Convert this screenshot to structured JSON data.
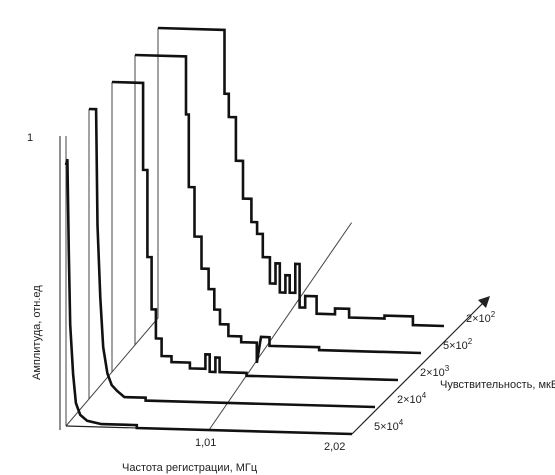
{
  "chart_data": {
    "type": "line",
    "style": "3d waterfall (step lines)",
    "xlabel": "Частота регистрации, МГц",
    "ylabel": "Амплитуда, отн.ед",
    "zlabel": "Чувствительность, мкВ",
    "x_ticks": [
      "1,01",
      "2,02"
    ],
    "y_ticks": [
      "1"
    ],
    "xlim": [
      0,
      2.02
    ],
    "ylim": [
      0,
      1
    ],
    "grid": false,
    "series": [
      {
        "name": "2×10²",
        "name_base": "2×10",
        "name_exp": "2",
        "points": [
          [
            0,
            1.0
          ],
          [
            0.47,
            1.0
          ],
          [
            0.47,
            0.78
          ],
          [
            0.5,
            0.78
          ],
          [
            0.5,
            0.7
          ],
          [
            0.55,
            0.7
          ],
          [
            0.55,
            0.55
          ],
          [
            0.6,
            0.55
          ],
          [
            0.6,
            0.42
          ],
          [
            0.66,
            0.42
          ],
          [
            0.66,
            0.34
          ],
          [
            0.7,
            0.34
          ],
          [
            0.7,
            0.3
          ],
          [
            0.74,
            0.3
          ],
          [
            0.74,
            0.22
          ],
          [
            0.79,
            0.22
          ],
          [
            0.79,
            0.13
          ],
          [
            0.83,
            0.13
          ],
          [
            0.83,
            0.2
          ],
          [
            0.86,
            0.2
          ],
          [
            0.86,
            0.1
          ],
          [
            0.9,
            0.1
          ],
          [
            0.9,
            0.16
          ],
          [
            0.93,
            0.16
          ],
          [
            0.93,
            0.1
          ],
          [
            0.97,
            0.1
          ],
          [
            0.97,
            0.2
          ],
          [
            1.0,
            0.2
          ],
          [
            1.0,
            0.05
          ],
          [
            1.04,
            0.05
          ],
          [
            1.04,
            0.09
          ],
          [
            1.12,
            0.09
          ],
          [
            1.12,
            0.03
          ],
          [
            1.25,
            0.03
          ],
          [
            1.25,
            0.05
          ],
          [
            1.35,
            0.05
          ],
          [
            1.35,
            0.02
          ],
          [
            1.6,
            0.02
          ],
          [
            1.6,
            0.03
          ],
          [
            1.8,
            0.03
          ],
          [
            1.8,
            0.0
          ],
          [
            2.02,
            0.0
          ]
        ]
      },
      {
        "name": "5×10²",
        "name_base": "5×10",
        "name_exp": "2",
        "points": [
          [
            0,
            1.0
          ],
          [
            0.36,
            1.0
          ],
          [
            0.36,
            0.8
          ],
          [
            0.38,
            0.8
          ],
          [
            0.38,
            0.55
          ],
          [
            0.42,
            0.55
          ],
          [
            0.42,
            0.38
          ],
          [
            0.47,
            0.38
          ],
          [
            0.47,
            0.27
          ],
          [
            0.52,
            0.27
          ],
          [
            0.52,
            0.2
          ],
          [
            0.56,
            0.2
          ],
          [
            0.56,
            0.13
          ],
          [
            0.6,
            0.13
          ],
          [
            0.6,
            0.08
          ],
          [
            0.66,
            0.08
          ],
          [
            0.66,
            0.04
          ],
          [
            0.75,
            0.04
          ],
          [
            0.75,
            0.02
          ],
          [
            0.86,
            0.02
          ],
          [
            0.86,
            -0.05
          ],
          [
            0.89,
            0.04
          ],
          [
            0.95,
            0.04
          ],
          [
            0.95,
            0.01
          ],
          [
            1.3,
            0.01
          ],
          [
            1.3,
            0.0
          ],
          [
            2.02,
            0.0
          ]
        ]
      },
      {
        "name": "2×10³",
        "name_base": "2×10",
        "name_exp": "3",
        "points": [
          [
            0,
            1.0
          ],
          [
            0.22,
            1.0
          ],
          [
            0.22,
            0.7
          ],
          [
            0.25,
            0.7
          ],
          [
            0.25,
            0.4
          ],
          [
            0.28,
            0.4
          ],
          [
            0.28,
            0.22
          ],
          [
            0.31,
            0.22
          ],
          [
            0.31,
            0.12
          ],
          [
            0.35,
            0.12
          ],
          [
            0.35,
            0.06
          ],
          [
            0.42,
            0.06
          ],
          [
            0.42,
            0.04
          ],
          [
            0.55,
            0.04
          ],
          [
            0.55,
            0.02
          ],
          [
            0.66,
            0.02
          ],
          [
            0.66,
            0.07
          ],
          [
            0.69,
            0.07
          ],
          [
            0.69,
            0.01
          ],
          [
            0.73,
            0.01
          ],
          [
            0.73,
            0.06
          ],
          [
            0.76,
            0.06
          ],
          [
            0.76,
            0.01
          ],
          [
            0.95,
            0.01
          ],
          [
            0.95,
            0.0
          ],
          [
            2.02,
            0.0
          ]
        ]
      },
      {
        "name": "2×10⁴",
        "name_base": "2×10",
        "name_exp": "4",
        "points": [
          [
            0,
            1.0
          ],
          [
            0.05,
            1.0
          ],
          [
            0.06,
            0.6
          ],
          [
            0.08,
            0.35
          ],
          [
            0.1,
            0.18
          ],
          [
            0.13,
            0.09
          ],
          [
            0.16,
            0.05
          ],
          [
            0.2,
            0.03
          ],
          [
            0.25,
            0.01
          ],
          [
            0.4,
            0.01
          ],
          [
            0.4,
            0.0
          ],
          [
            2.02,
            0.0
          ]
        ]
      },
      {
        "name": "5×10⁴",
        "name_base": "5×10",
        "name_exp": "4",
        "points": [
          [
            0,
            0.9
          ],
          [
            0.01,
            0.92
          ],
          [
            0.02,
            0.6
          ],
          [
            0.03,
            0.35
          ],
          [
            0.05,
            0.18
          ],
          [
            0.07,
            0.08
          ],
          [
            0.1,
            0.04
          ],
          [
            0.15,
            0.02
          ],
          [
            0.25,
            0.01
          ],
          [
            0.5,
            0.01
          ],
          [
            0.5,
            0.0
          ],
          [
            2.02,
            0.0
          ]
        ]
      }
    ]
  }
}
